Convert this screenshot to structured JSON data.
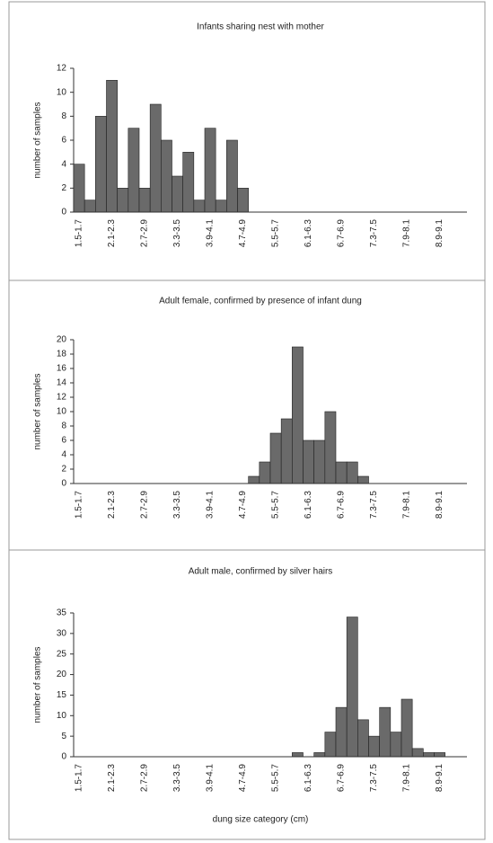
{
  "chart_data": [
    {
      "type": "bar",
      "title": "Infants sharing nest with mother",
      "ylabel": "number of samples",
      "categories": [
        "1.5-1.7",
        null,
        null,
        "2.1-2.3",
        null,
        null,
        "2.7-2.9",
        null,
        null,
        "3.3-3.5",
        null,
        null,
        "3.9-4.1",
        null,
        null,
        "4.7-4.9",
        null,
        null,
        "5.5-5.7",
        null,
        null,
        "6.1-6.3",
        null,
        null,
        "6.7-6.9",
        null,
        null,
        "7.3-7.5",
        null,
        null,
        "7.9-8.1",
        null,
        null,
        "8.9-9.1",
        null,
        null
      ],
      "values": [
        4,
        1,
        8,
        11,
        2,
        7,
        2,
        9,
        6,
        3,
        5,
        1,
        7,
        1,
        6,
        2,
        0,
        0,
        0,
        0,
        0,
        0,
        0,
        0,
        0,
        0,
        0,
        0,
        0,
        0,
        0,
        0,
        0,
        0,
        0,
        0
      ],
      "ylim": [
        0,
        12
      ],
      "yticks": [
        0,
        2,
        4,
        6,
        8,
        10,
        12
      ],
      "color": "#6a6a6a"
    },
    {
      "type": "bar",
      "title": "Adult female, confirmed by presence of infant dung",
      "ylabel": "number of samples",
      "categories": [
        "1.5-1.7",
        null,
        null,
        "2.1-2.3",
        null,
        null,
        "2.7-2.9",
        null,
        null,
        "3.3-3.5",
        null,
        null,
        "3.9-4.1",
        null,
        null,
        "4.7-4.9",
        null,
        null,
        "5.5-5.7",
        null,
        null,
        "6.1-6.3",
        null,
        null,
        "6.7-6.9",
        null,
        null,
        "7.3-7.5",
        null,
        null,
        "7.9-8.1",
        null,
        null,
        "8.9-9.1",
        null,
        null
      ],
      "values": [
        0,
        0,
        0,
        0,
        0,
        0,
        0,
        0,
        0,
        0,
        0,
        0,
        0,
        0,
        0,
        0,
        1,
        3,
        7,
        9,
        19,
        6,
        6,
        10,
        3,
        3,
        1,
        0,
        0,
        0,
        0,
        0,
        0,
        0,
        0,
        0
      ],
      "ylim": [
        0,
        20
      ],
      "yticks": [
        0,
        2,
        4,
        6,
        8,
        10,
        12,
        14,
        16,
        18,
        20
      ],
      "color": "#6a6a6a"
    },
    {
      "type": "bar",
      "title": "Adult male, confirmed by silver hairs",
      "ylabel": "number of samples",
      "xlabel": "dung size category (cm)",
      "categories": [
        "1.5-1.7",
        null,
        null,
        "2.1-2.3",
        null,
        null,
        "2.7-2.9",
        null,
        null,
        "3.3-3.5",
        null,
        null,
        "3.9-4.1",
        null,
        null,
        "4.7-4.9",
        null,
        null,
        "5.5-5.7",
        null,
        null,
        "6.1-6.3",
        null,
        null,
        "6.7-6.9",
        null,
        null,
        "7.3-7.5",
        null,
        null,
        "7.9-8.1",
        null,
        null,
        "8.9-9.1",
        null,
        null
      ],
      "values": [
        0,
        0,
        0,
        0,
        0,
        0,
        0,
        0,
        0,
        0,
        0,
        0,
        0,
        0,
        0,
        0,
        0,
        0,
        0,
        0,
        1,
        0,
        1,
        6,
        12,
        34,
        9,
        5,
        12,
        6,
        14,
        2,
        1,
        1,
        0,
        0
      ],
      "ylim": [
        0,
        35
      ],
      "yticks": [
        0,
        5,
        10,
        15,
        20,
        25,
        30,
        35
      ],
      "color": "#6a6a6a"
    }
  ]
}
